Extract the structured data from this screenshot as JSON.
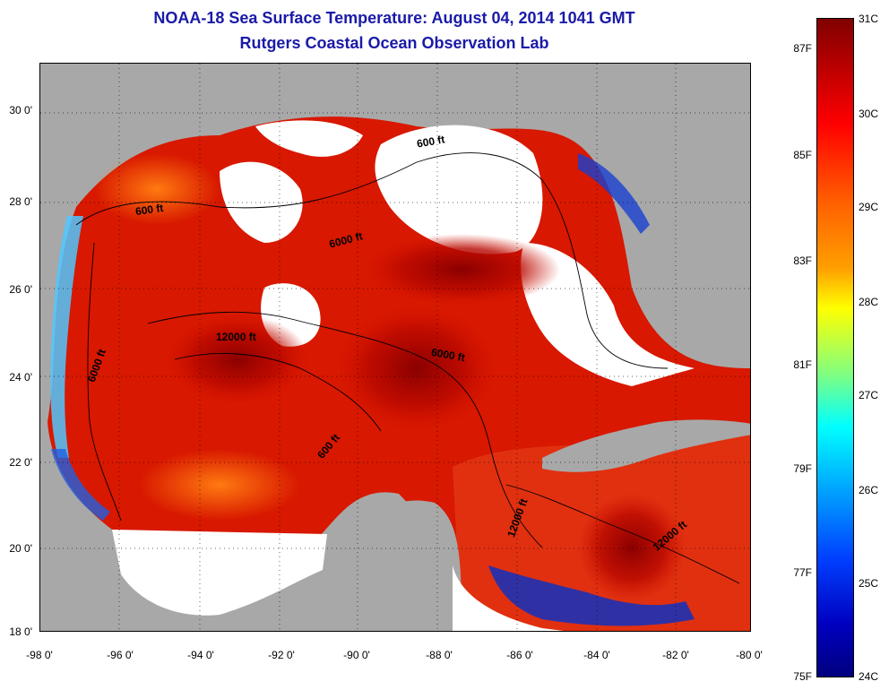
{
  "title": "NOAA-18 Sea Surface Temperature:  August 04, 2014 1041 GMT",
  "subtitle": "Rutgers Coastal Ocean Observation Lab",
  "map": {
    "lat_labels": [
      "30 0'",
      "28 0'",
      "26 0'",
      "24 0'",
      "22 0'",
      "20 0'",
      "18 0'"
    ],
    "lon_labels": [
      "-98 0'",
      "-96 0'",
      "-94 0'",
      "-92 0'",
      "-90 0'",
      "-88 0'",
      "-86 0'",
      "-84 0'",
      "-82 0'",
      "-80 0'"
    ],
    "contour_labels": [
      "600 ft",
      "600 ft",
      "6000 ft",
      "12000 ft",
      "6000 ft",
      "6000 ft",
      "600 ft",
      "12000 ft",
      "12000 ft"
    ],
    "colors": {
      "land": "#a8a8a8",
      "cloud": "#ffffff",
      "warm": "#d81800",
      "hot": "#9a0000",
      "cool": "#1030c0"
    }
  },
  "colorbar": {
    "fahrenheit": [
      "87F",
      "85F",
      "83F",
      "81F",
      "79F",
      "77F",
      "75F"
    ],
    "celsius": [
      "31C",
      "30C",
      "29C",
      "28C",
      "27C",
      "26C",
      "25C",
      "24C"
    ]
  }
}
